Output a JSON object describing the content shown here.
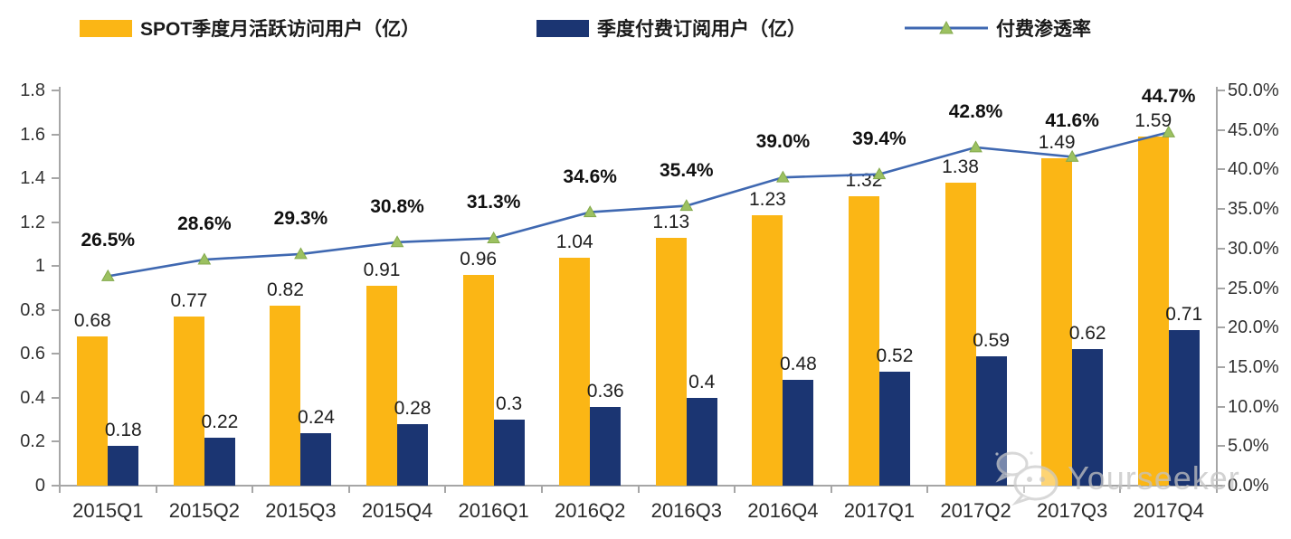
{
  "chart_data": {
    "type": "bar",
    "subtype": "grouped-bars-with-line-overlay",
    "title": "",
    "categories": [
      "2015Q1",
      "2015Q2",
      "2015Q3",
      "2015Q4",
      "2016Q1",
      "2016Q2",
      "2016Q3",
      "2016Q4",
      "2017Q1",
      "2017Q2",
      "2017Q3",
      "2017Q4"
    ],
    "series": [
      {
        "name": "SPOT季度月活跃访问用户（亿）",
        "type": "bar",
        "axis": "left",
        "color": "#FBB615",
        "values": [
          0.68,
          0.77,
          0.82,
          0.91,
          0.96,
          1.04,
          1.13,
          1.23,
          1.32,
          1.38,
          1.49,
          1.59
        ],
        "labels": [
          "0.68",
          "0.77",
          "0.82",
          "0.91",
          "0.96",
          "1.04",
          "1.13",
          "1.23",
          "1.32",
          "1.38",
          "1.49",
          "1.59"
        ]
      },
      {
        "name": "季度付费订阅用户（亿）",
        "type": "bar",
        "axis": "left",
        "color": "#1B3572",
        "values": [
          0.18,
          0.22,
          0.24,
          0.28,
          0.3,
          0.36,
          0.4,
          0.48,
          0.52,
          0.59,
          0.62,
          0.71
        ],
        "labels": [
          "0.18",
          "0.22",
          "0.24",
          "0.28",
          "0.3",
          "0.36",
          "0.4",
          "0.48",
          "0.52",
          "0.59",
          "0.62",
          "0.71"
        ]
      },
      {
        "name": "付费渗透率",
        "type": "line",
        "axis": "right",
        "color": "#3F68B1",
        "marker": "triangle",
        "marker_color": "#9CC161",
        "values": [
          26.5,
          28.6,
          29.3,
          30.8,
          31.3,
          34.6,
          35.4,
          39.0,
          39.4,
          42.8,
          41.6,
          44.7
        ],
        "labels": [
          "26.5%",
          "28.6%",
          "29.3%",
          "30.8%",
          "31.3%",
          "34.6%",
          "35.4%",
          "39.0%",
          "39.4%",
          "42.8%",
          "41.6%",
          "44.7%"
        ]
      }
    ],
    "left_axis": {
      "min": 0,
      "max": 1.8,
      "step": 0.2,
      "tick_labels": [
        "0",
        "0.2",
        "0.4",
        "0.6",
        "0.8",
        "1",
        "1.2",
        "1.4",
        "1.6",
        "1.8"
      ]
    },
    "right_axis": {
      "min": 0,
      "max": 50,
      "step": 5,
      "tick_labels": [
        "0.0%",
        "5.0%",
        "10.0%",
        "15.0%",
        "20.0%",
        "25.0%",
        "30.0%",
        "35.0%",
        "40.0%",
        "45.0%",
        "50.0%"
      ]
    },
    "grid": false,
    "legend_position": "top"
  },
  "watermark": {
    "text": "Yourseeker"
  }
}
